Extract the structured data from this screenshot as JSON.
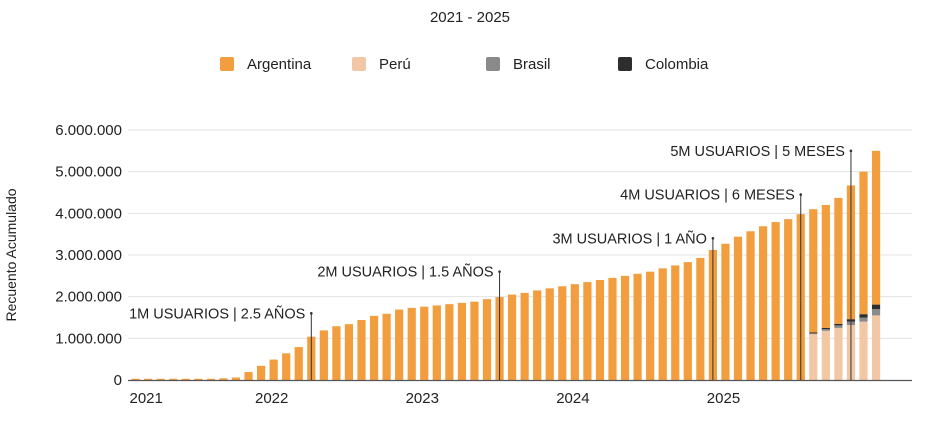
{
  "chart_data": {
    "type": "bar",
    "stacked": true,
    "title": "2021 - 2025",
    "ylabel": "Recuento Acumulado",
    "xlabel": "",
    "ylim": [
      0,
      6000000
    ],
    "y_ticks": [
      0,
      1000000,
      2000000,
      3000000,
      4000000,
      5000000,
      6000000
    ],
    "y_tick_labels": [
      "0",
      "1.000.000",
      "2.000.000",
      "3.000.000",
      "4.000.000",
      "5.000.000",
      "6.000.000"
    ],
    "x_tick_labels": [
      {
        "label": "2021",
        "index": 0
      },
      {
        "label": "2022",
        "index": 10
      },
      {
        "label": "2023",
        "index": 22
      },
      {
        "label": "2024",
        "index": 34
      },
      {
        "label": "2025",
        "index": 46
      }
    ],
    "legend": [
      {
        "name": "Argentina",
        "color": "#f29d3e"
      },
      {
        "name": "Perú",
        "color": "#f2c7a5"
      },
      {
        "name": "Brasil",
        "color": "#8a8a8a"
      },
      {
        "name": "Colombia",
        "color": "#2e2e2e"
      }
    ],
    "bar_count": 60,
    "series": [
      {
        "name": "Colombia",
        "color": "#2e2e2e",
        "values": [
          0,
          0,
          0,
          0,
          0,
          0,
          0,
          0,
          0,
          0,
          0,
          0,
          0,
          0,
          0,
          0,
          0,
          0,
          0,
          0,
          0,
          0,
          0,
          0,
          0,
          0,
          0,
          0,
          0,
          0,
          0,
          0,
          0,
          0,
          0,
          0,
          0,
          0,
          0,
          0,
          0,
          0,
          0,
          0,
          0,
          0,
          0,
          0,
          0,
          0,
          0,
          0,
          0,
          0,
          20000,
          30000,
          40000,
          60000,
          80000,
          110000
        ]
      },
      {
        "name": "Brasil",
        "color": "#8a8a8a",
        "values": [
          0,
          0,
          0,
          0,
          0,
          0,
          0,
          0,
          0,
          0,
          0,
          0,
          0,
          0,
          0,
          0,
          0,
          0,
          0,
          0,
          0,
          0,
          0,
          0,
          0,
          0,
          0,
          0,
          0,
          0,
          0,
          0,
          0,
          0,
          0,
          0,
          0,
          0,
          0,
          0,
          0,
          0,
          0,
          0,
          0,
          0,
          0,
          0,
          0,
          0,
          0,
          0,
          0,
          0,
          20000,
          40000,
          60000,
          80000,
          100000,
          150000
        ]
      },
      {
        "name": "Perú",
        "color": "#f2c7a5",
        "values": [
          0,
          0,
          0,
          0,
          0,
          0,
          0,
          0,
          0,
          0,
          0,
          0,
          0,
          0,
          0,
          0,
          0,
          0,
          0,
          0,
          0,
          0,
          0,
          0,
          0,
          0,
          0,
          0,
          0,
          0,
          0,
          0,
          0,
          0,
          0,
          0,
          0,
          0,
          0,
          0,
          0,
          0,
          0,
          0,
          0,
          0,
          0,
          0,
          0,
          0,
          0,
          0,
          0,
          0,
          1100000,
          1180000,
          1250000,
          1320000,
          1400000,
          1550000
        ]
      },
      {
        "name": "Argentina",
        "color": "#f29d3e",
        "values": [
          30000,
          30000,
          30000,
          30000,
          30000,
          30000,
          30000,
          40000,
          60000,
          190000,
          340000,
          490000,
          640000,
          790000,
          1040000,
          1190000,
          1290000,
          1340000,
          1440000,
          1540000,
          1590000,
          1690000,
          1730000,
          1760000,
          1790000,
          1820000,
          1850000,
          1880000,
          1940000,
          1990000,
          2050000,
          2090000,
          2150000,
          2200000,
          2250000,
          2300000,
          2350000,
          2400000,
          2450000,
          2500000,
          2550000,
          2600000,
          2680000,
          2750000,
          2830000,
          2930000,
          3120000,
          3270000,
          3440000,
          3570000,
          3690000,
          3790000,
          3860000,
          3980000,
          2960000,
          2950000,
          3020000,
          3210000,
          3420000,
          3690000
        ]
      }
    ],
    "annotations": [
      {
        "text": "1M USUARIOS | 2.5 AÑOS",
        "bar_index": 14,
        "value": 1600000,
        "anchor": "end"
      },
      {
        "text": "2M USUARIOS | 1.5 AÑOS",
        "bar_index": 29,
        "value": 2600000,
        "anchor": "end"
      },
      {
        "text": "3M USUARIOS | 1 AÑO",
        "bar_index": 46,
        "value": 3400000,
        "anchor": "end"
      },
      {
        "text": "4M USUARIOS | 6 MESES",
        "bar_index": 53,
        "value": 4450000,
        "anchor": "end"
      },
      {
        "text": "5M USUARIOS | 5 MESES",
        "bar_index": 57,
        "value": 5500000,
        "anchor": "end"
      }
    ]
  }
}
